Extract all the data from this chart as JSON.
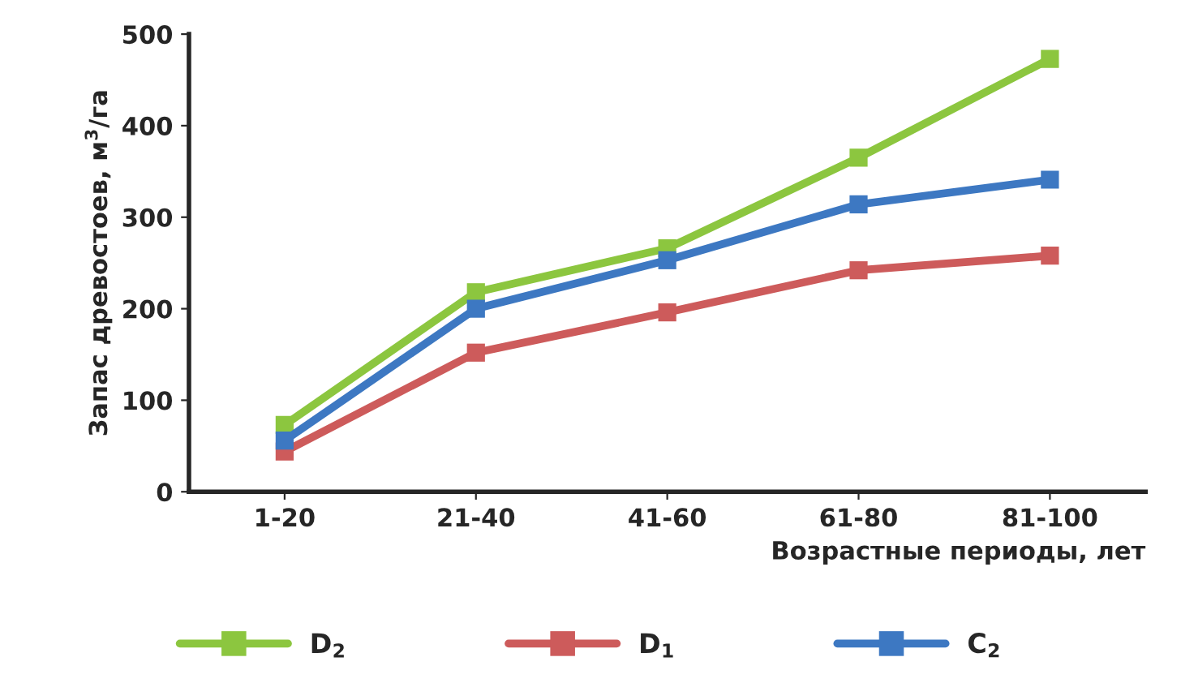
{
  "chart_data": {
    "type": "line",
    "xlabel": "Возрастные периоды, лет",
    "ylabel": "Запас древостоев, м$^{3}$/га",
    "categories": [
      "1-20",
      "21-40",
      "41-60",
      "61-80",
      "81-100"
    ],
    "series": [
      {
        "name": "D$_{2}$",
        "color": "#8cc63f",
        "values": [
          73,
          218,
          266,
          365,
          473
        ]
      },
      {
        "name": "D$_{1}$",
        "color": "#cd5b5b",
        "values": [
          44,
          152,
          196,
          242,
          258
        ]
      },
      {
        "name": "C$_{2}$",
        "color": "#3d78c2",
        "values": [
          56,
          200,
          253,
          314,
          341
        ]
      }
    ],
    "ylim": [
      0,
      500
    ],
    "yticks": [
      0,
      100,
      200,
      300,
      400,
      500
    ],
    "marker": "square",
    "line_style": "solid",
    "legend": "bottom",
    "grid": false
  }
}
